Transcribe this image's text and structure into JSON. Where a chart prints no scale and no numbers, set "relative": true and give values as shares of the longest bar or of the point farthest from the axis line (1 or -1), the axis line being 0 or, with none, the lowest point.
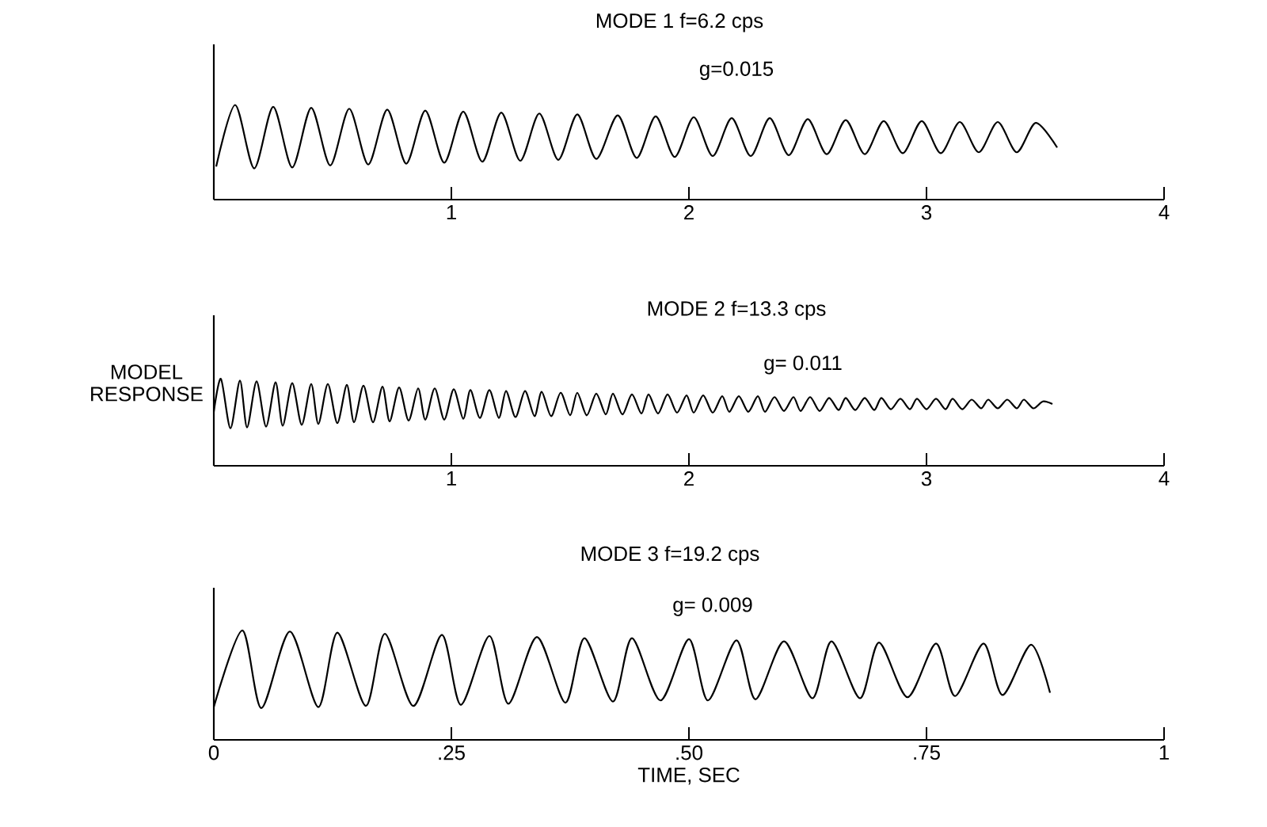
{
  "chart_data": [
    {
      "type": "line",
      "title": "MODE 1   f=6.2 cps",
      "subtitle": "g=0.015",
      "relative": true,
      "color": "#000000",
      "xlim": [
        0,
        4
      ],
      "xticks": [
        1,
        2,
        3,
        4
      ],
      "x": [
        0.01,
        0.09,
        0.17,
        0.25,
        0.33,
        0.41,
        0.49,
        0.57,
        0.65,
        0.73,
        0.81,
        0.89,
        0.97,
        1.05,
        1.13,
        1.21,
        1.29,
        1.37,
        1.45,
        1.53,
        1.61,
        1.7,
        1.78,
        1.86,
        1.94,
        2.02,
        2.1,
        2.18,
        2.26,
        2.34,
        2.42,
        2.5,
        2.58,
        2.66,
        2.74,
        2.82,
        2.9,
        2.98,
        3.06,
        3.14,
        3.22,
        3.3,
        3.38,
        3.46,
        3.55
      ],
      "values": [
        0.35,
        1.0,
        0.33,
        0.98,
        0.34,
        0.97,
        0.36,
        0.96,
        0.37,
        0.95,
        0.38,
        0.94,
        0.39,
        0.93,
        0.4,
        0.92,
        0.41,
        0.91,
        0.42,
        0.9,
        0.43,
        0.89,
        0.44,
        0.88,
        0.45,
        0.87,
        0.46,
        0.86,
        0.46,
        0.86,
        0.47,
        0.85,
        0.48,
        0.84,
        0.48,
        0.83,
        0.49,
        0.83,
        0.49,
        0.82,
        0.5,
        0.82,
        0.5,
        0.81,
        0.55
      ]
    },
    {
      "type": "line",
      "title": "MODE 2   f=13.3 cps",
      "subtitle": "g= 0.011",
      "ylabel": "MODEL RESPONSE",
      "relative": true,
      "color": "#000000",
      "xlim": [
        0,
        4
      ],
      "xticks": [
        1,
        2,
        3,
        4
      ],
      "x": [
        0.0,
        0.03,
        0.07,
        0.11,
        0.14,
        0.18,
        0.22,
        0.26,
        0.29,
        0.33,
        0.37,
        0.41,
        0.44,
        0.48,
        0.52,
        0.56,
        0.59,
        0.63,
        0.67,
        0.71,
        0.74,
        0.78,
        0.82,
        0.86,
        0.89,
        0.93,
        0.97,
        1.01,
        1.05,
        1.08,
        1.12,
        1.16,
        1.2,
        1.23,
        1.27,
        1.31,
        1.35,
        1.38,
        1.42,
        1.46,
        1.5,
        1.53,
        1.57,
        1.61,
        1.65,
        1.68,
        1.72,
        1.76,
        1.8,
        1.83,
        1.87,
        1.91,
        1.95,
        1.99,
        2.02,
        2.06,
        2.1,
        2.14,
        2.17,
        2.21,
        2.25,
        2.29,
        2.32,
        2.36,
        2.4,
        2.44,
        2.47,
        2.51,
        2.55,
        2.59,
        2.63,
        2.66,
        2.7,
        2.74,
        2.78,
        2.81,
        2.85,
        2.89,
        2.93,
        2.96,
        3.0,
        3.04,
        3.08,
        3.11,
        3.15,
        3.19,
        3.23,
        3.26,
        3.3,
        3.34,
        3.38,
        3.41,
        3.45,
        3.49,
        3.53
      ],
      "values": [
        0.62,
        1.0,
        0.43,
        0.98,
        0.44,
        0.97,
        0.45,
        0.96,
        0.46,
        0.95,
        0.47,
        0.94,
        0.48,
        0.94,
        0.49,
        0.93,
        0.5,
        0.92,
        0.5,
        0.91,
        0.51,
        0.9,
        0.52,
        0.89,
        0.53,
        0.89,
        0.53,
        0.88,
        0.54,
        0.87,
        0.55,
        0.87,
        0.55,
        0.86,
        0.56,
        0.86,
        0.57,
        0.85,
        0.57,
        0.84,
        0.58,
        0.84,
        0.58,
        0.83,
        0.59,
        0.83,
        0.59,
        0.82,
        0.6,
        0.82,
        0.6,
        0.82,
        0.61,
        0.81,
        0.61,
        0.81,
        0.61,
        0.8,
        0.62,
        0.8,
        0.62,
        0.8,
        0.62,
        0.79,
        0.63,
        0.79,
        0.63,
        0.79,
        0.63,
        0.78,
        0.64,
        0.78,
        0.64,
        0.78,
        0.64,
        0.78,
        0.65,
        0.77,
        0.65,
        0.77,
        0.65,
        0.77,
        0.65,
        0.77,
        0.65,
        0.76,
        0.66,
        0.76,
        0.66,
        0.76,
        0.66,
        0.76,
        0.66,
        0.74,
        0.71
      ]
    },
    {
      "type": "line",
      "title": "MODE 3  f=19.2 cps",
      "subtitle": "g= 0.009",
      "xlabel": "TIME, SEC",
      "relative": true,
      "color": "#000000",
      "xlim": [
        0,
        1
      ],
      "xticks": [
        0,
        {
          "value": 0.25,
          "label": ".25"
        },
        {
          "value": 0.5,
          "label": ".50"
        },
        {
          "value": 0.75,
          "label": ".75"
        },
        1
      ],
      "x": [
        0.0,
        0.03,
        0.05,
        0.08,
        0.11,
        0.13,
        0.16,
        0.18,
        0.21,
        0.24,
        0.26,
        0.29,
        0.31,
        0.34,
        0.37,
        0.39,
        0.42,
        0.44,
        0.47,
        0.5,
        0.52,
        0.55,
        0.57,
        0.6,
        0.63,
        0.65,
        0.68,
        0.7,
        0.73,
        0.76,
        0.78,
        0.81,
        0.83,
        0.86,
        0.88
      ],
      "values": [
        0.3,
        1.0,
        0.29,
        0.99,
        0.3,
        0.98,
        0.31,
        0.97,
        0.31,
        0.96,
        0.32,
        0.95,
        0.33,
        0.94,
        0.34,
        0.93,
        0.35,
        0.93,
        0.36,
        0.92,
        0.36,
        0.91,
        0.37,
        0.9,
        0.38,
        0.9,
        0.38,
        0.89,
        0.39,
        0.88,
        0.4,
        0.88,
        0.41,
        0.87,
        0.43
      ]
    }
  ]
}
